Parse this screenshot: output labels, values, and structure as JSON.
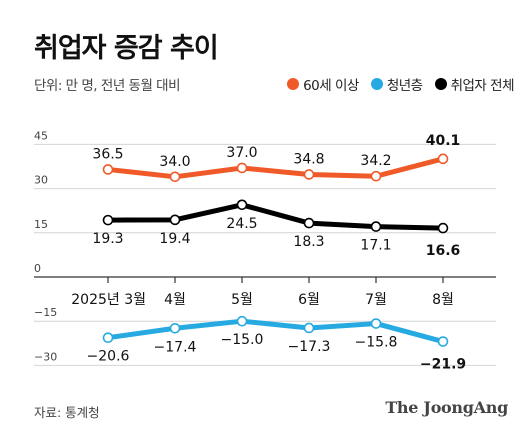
{
  "title": "취업자 증감 추이",
  "subtitle": "단위: 만 명, 전년 동월 대비",
  "source": "자료: 통계청",
  "logo": "The JoongAng",
  "chart_data": {
    "type": "line",
    "categories": [
      "2025년 3월",
      "4월",
      "5월",
      "6월",
      "7월",
      "8월"
    ],
    "y_ticks": [
      45,
      30,
      15,
      0,
      -15,
      -30
    ],
    "ylim": [
      -30,
      45
    ],
    "grid": true,
    "legend_placement": "top-right",
    "highlight_last": true,
    "series": [
      {
        "name": "60세 이상",
        "color": "#f05a28",
        "values": [
          36.5,
          34.0,
          37.0,
          34.8,
          34.2,
          40.1
        ],
        "label_pos": "above"
      },
      {
        "name": "청년층",
        "color": "#27a9e1",
        "values": [
          -20.6,
          -17.4,
          -15.0,
          -17.3,
          -15.8,
          -21.9
        ],
        "label_pos": "below"
      },
      {
        "name": "취업자 전체",
        "color": "#000000",
        "values": [
          19.3,
          19.4,
          24.5,
          18.3,
          17.1,
          16.6
        ],
        "label_pos": "below"
      }
    ]
  }
}
